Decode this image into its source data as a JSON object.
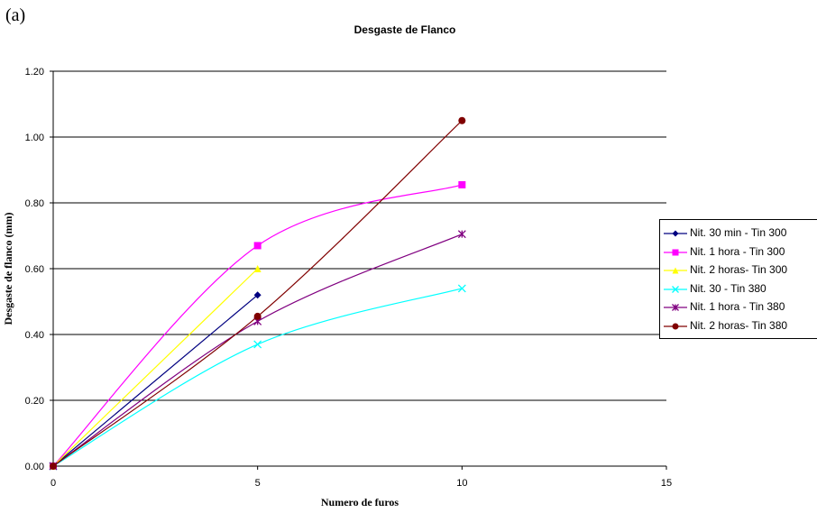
{
  "panel_label": "(a)",
  "chart_data": {
    "type": "line",
    "title": "Desgaste de Flanco",
    "xlabel": "Numero de furos",
    "ylabel": "Desgaste de flanco (mm)",
    "xlim": [
      0,
      15
    ],
    "ylim": [
      0,
      1.2
    ],
    "x_ticks": [
      {
        "value": 0,
        "label": "0"
      },
      {
        "value": 5,
        "label": "5"
      },
      {
        "value": 10,
        "label": "10"
      },
      {
        "value": 15,
        "label": "15"
      }
    ],
    "y_ticks": [
      {
        "value": 0,
        "label": "0.00"
      },
      {
        "value": 0.2,
        "label": "0.20"
      },
      {
        "value": 0.4,
        "label": "0.40"
      },
      {
        "value": 0.6,
        "label": "0.60"
      },
      {
        "value": 0.8,
        "label": "0.80"
      },
      {
        "value": 1.0,
        "label": "1.00"
      },
      {
        "value": 1.2,
        "label": "1.20"
      }
    ],
    "grid": "horizontal",
    "legend_position": "right",
    "series": [
      {
        "name": "Nit. 30 min - Tin 300",
        "color": "#000080",
        "marker": "diamond",
        "x": [
          0,
          5
        ],
        "y": [
          0,
          0.52
        ]
      },
      {
        "name": "Nit. 1 hora - Tin 300",
        "color": "#ff00ff",
        "marker": "square",
        "x": [
          0,
          5,
          10
        ],
        "y": [
          0,
          0.67,
          0.855
        ]
      },
      {
        "name": "Nit. 2 horas- Tin 300",
        "color": "#ffff00",
        "marker": "triangle",
        "x": [
          0,
          5
        ],
        "y": [
          0,
          0.6
        ]
      },
      {
        "name": "Nit. 30 - Tin 380",
        "color": "#00ffff",
        "marker": "x",
        "x": [
          0,
          5,
          10
        ],
        "y": [
          0,
          0.37,
          0.54
        ]
      },
      {
        "name": "Nit. 1 hora - Tin 380",
        "color": "#800080",
        "marker": "star",
        "x": [
          0,
          5,
          10
        ],
        "y": [
          0,
          0.44,
          0.705
        ]
      },
      {
        "name": "Nit. 2 horas- Tin 380",
        "color": "#800000",
        "marker": "circle",
        "x": [
          0,
          5,
          10
        ],
        "y": [
          0,
          0.455,
          1.05
        ]
      }
    ]
  }
}
